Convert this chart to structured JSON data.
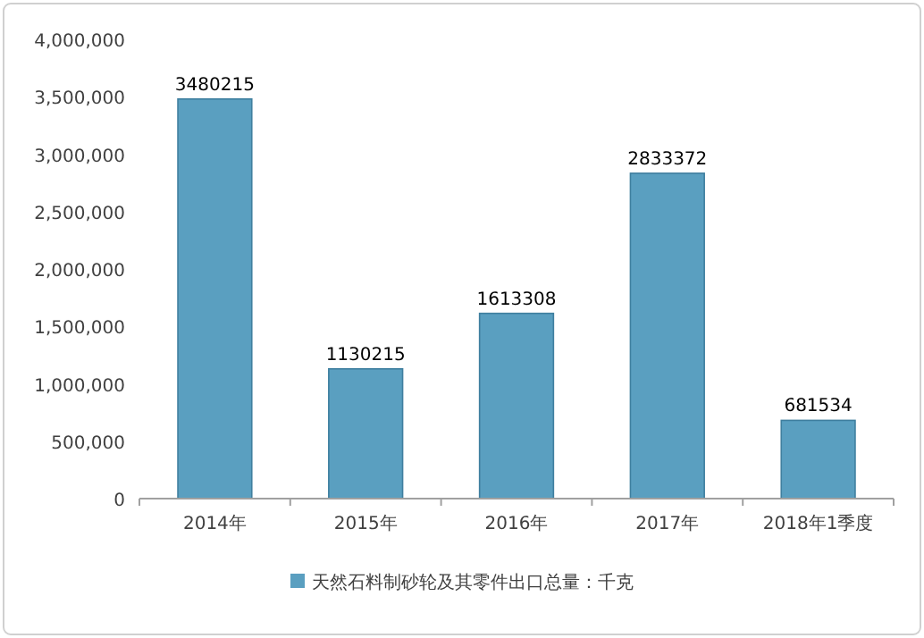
{
  "chart_data": {
    "type": "bar",
    "categories": [
      "2014年",
      "2015年",
      "2016年",
      "2017年",
      "2018年1季度"
    ],
    "series": [
      {
        "name": "天然石料制砂轮及其零件出口总量：千克",
        "color": "#5a9fc0",
        "values": [
          3480215,
          1130215,
          1613308,
          2833372,
          681534
        ]
      }
    ],
    "ylim": [
      0,
      4000000
    ],
    "yticks": [
      {
        "value": 0,
        "label": "0"
      },
      {
        "value": 500000,
        "label": "500,000"
      },
      {
        "value": 1000000,
        "label": "1,000,000"
      },
      {
        "value": 1500000,
        "label": "1,500,000"
      },
      {
        "value": 2000000,
        "label": "2,000,000"
      },
      {
        "value": 2500000,
        "label": "2,500,000"
      },
      {
        "value": 3000000,
        "label": "3,000,000"
      },
      {
        "value": 3500000,
        "label": "3,500,000"
      },
      {
        "value": 4000000,
        "label": "4,000,000"
      }
    ],
    "data_labels": true,
    "legend": "bottom"
  }
}
